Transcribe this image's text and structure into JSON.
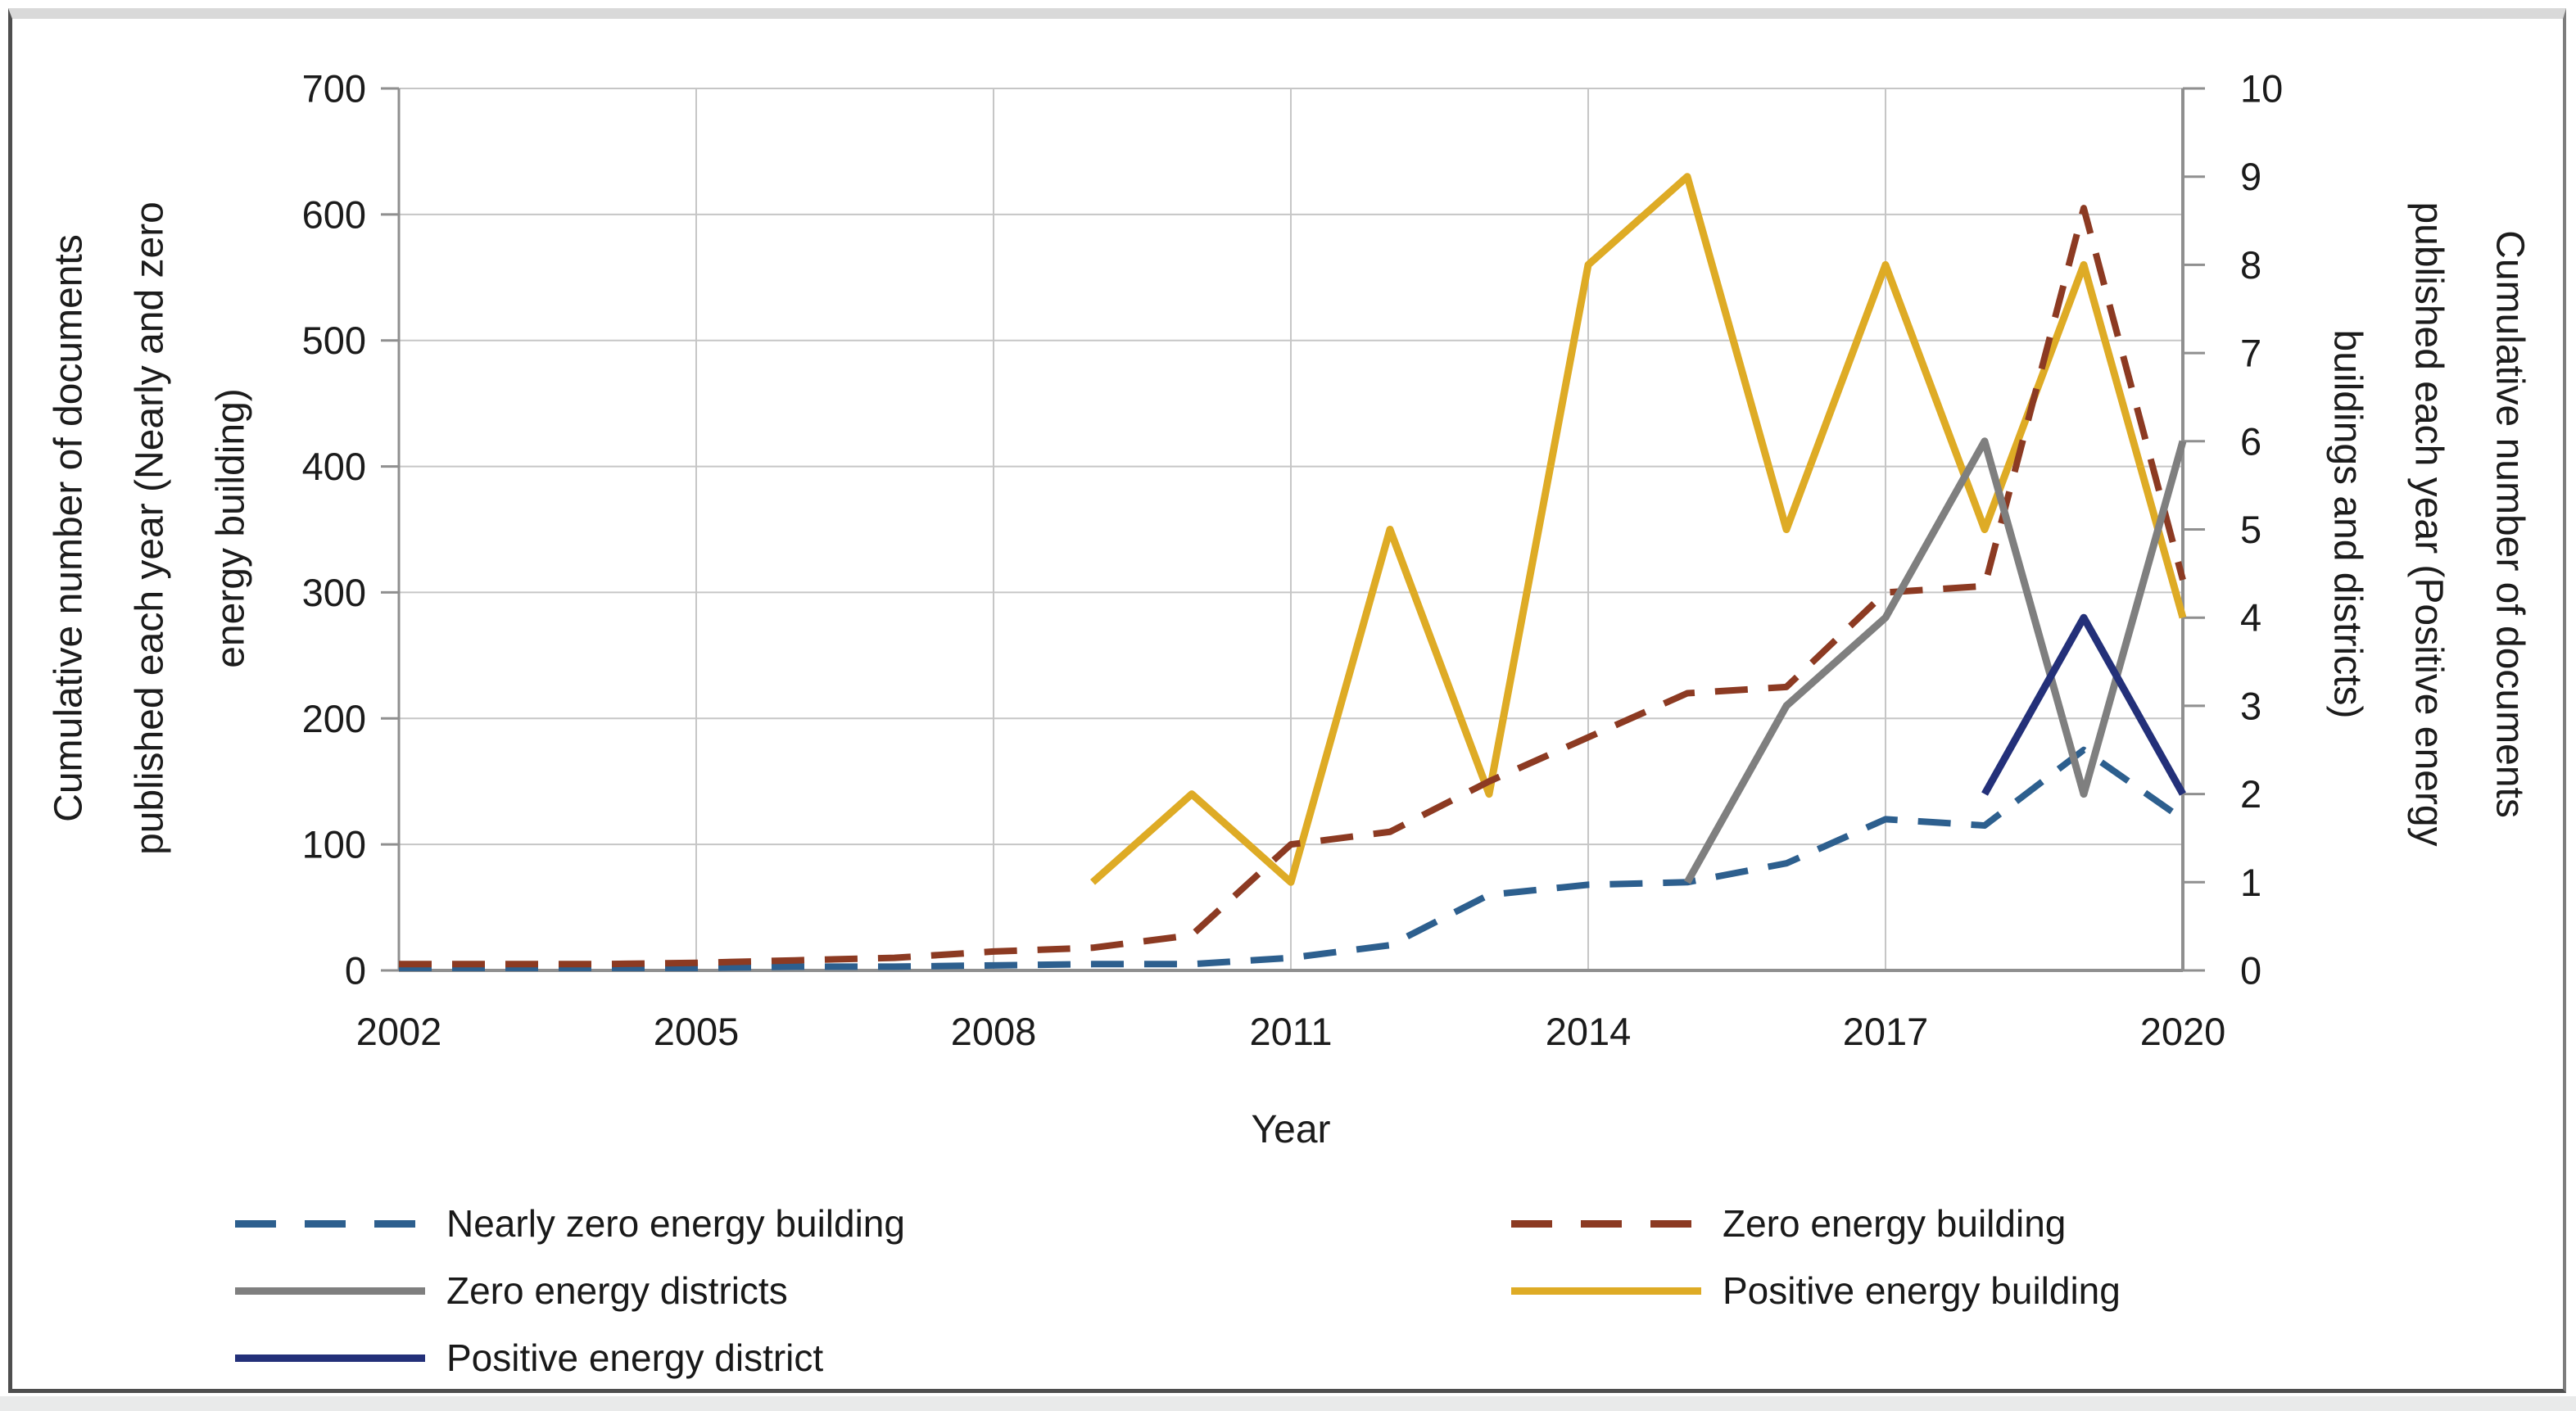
{
  "chart_data": {
    "type": "line",
    "title": "",
    "xlabel": "Year",
    "grid": true,
    "x_ticks": [
      "2002",
      "2005",
      "2008",
      "2011",
      "2014",
      "2017",
      "2020"
    ],
    "years": [
      2002,
      2003,
      2004,
      2005,
      2006,
      2007,
      2008,
      2009,
      2010,
      2011,
      2012,
      2013,
      2014,
      2015,
      2016,
      2017,
      2018,
      2019,
      2020
    ],
    "left_axis": {
      "label": "Cumulative number of documents published each year  (Nearly and zero energy building)",
      "range": [
        0,
        700
      ],
      "ticks": [
        "700",
        "600",
        "500",
        "400",
        "300",
        "200",
        "100",
        "0"
      ]
    },
    "right_axis": {
      "label": "Cumulative number of documents published each year (Positive energy buildings and districts)",
      "range": [
        0,
        10
      ],
      "ticks": [
        "10",
        "9",
        "8",
        "7",
        "6",
        "5",
        "4",
        "3",
        "2",
        "1",
        "0"
      ]
    },
    "series": [
      {
        "name": "Nearly zero energy building",
        "axis": "left",
        "style": "dashed",
        "color": "#2d5f8e",
        "values": [
          2,
          2,
          2,
          2,
          3,
          3,
          4,
          5,
          5,
          10,
          20,
          60,
          68,
          70,
          85,
          120,
          115,
          175,
          120
        ]
      },
      {
        "name": "Zero energy building",
        "axis": "left",
        "style": "dashed",
        "color": "#8c3a22",
        "values": [
          5,
          5,
          5,
          6,
          8,
          10,
          15,
          18,
          28,
          100,
          110,
          150,
          185,
          220,
          225,
          300,
          305,
          605,
          310
        ]
      },
      {
        "name": "Zero energy districts",
        "axis": "right",
        "style": "solid",
        "color": "#7f7f7f",
        "values": [
          null,
          null,
          null,
          null,
          null,
          null,
          null,
          null,
          null,
          null,
          null,
          null,
          null,
          1,
          3,
          4,
          6,
          2,
          6
        ]
      },
      {
        "name": "Positive energy building",
        "axis": "right",
        "style": "solid",
        "color": "#deab25",
        "values": [
          null,
          null,
          null,
          null,
          null,
          null,
          null,
          1,
          2,
          1,
          5,
          2,
          8,
          9,
          5,
          8,
          5,
          8,
          4
        ]
      },
      {
        "name": "Positive energy district",
        "axis": "right",
        "style": "solid",
        "color": "#233079",
        "values": [
          null,
          null,
          null,
          null,
          null,
          null,
          null,
          null,
          null,
          null,
          null,
          null,
          null,
          null,
          null,
          null,
          2,
          4,
          2
        ]
      }
    ],
    "legend": {
      "position": "bottom",
      "items": [
        {
          "label": "Nearly zero energy building",
          "series": 0
        },
        {
          "label": "Zero energy building",
          "series": 1
        },
        {
          "label": "Zero energy districts",
          "series": 2
        },
        {
          "label": "Positive energy building",
          "series": 3
        },
        {
          "label": "Positive energy district",
          "series": 4
        }
      ]
    },
    "colors": {
      "gridline": "#c6c6c6",
      "axis_line": "#8f8f8f",
      "tick_text": "#1b1b1b"
    }
  }
}
